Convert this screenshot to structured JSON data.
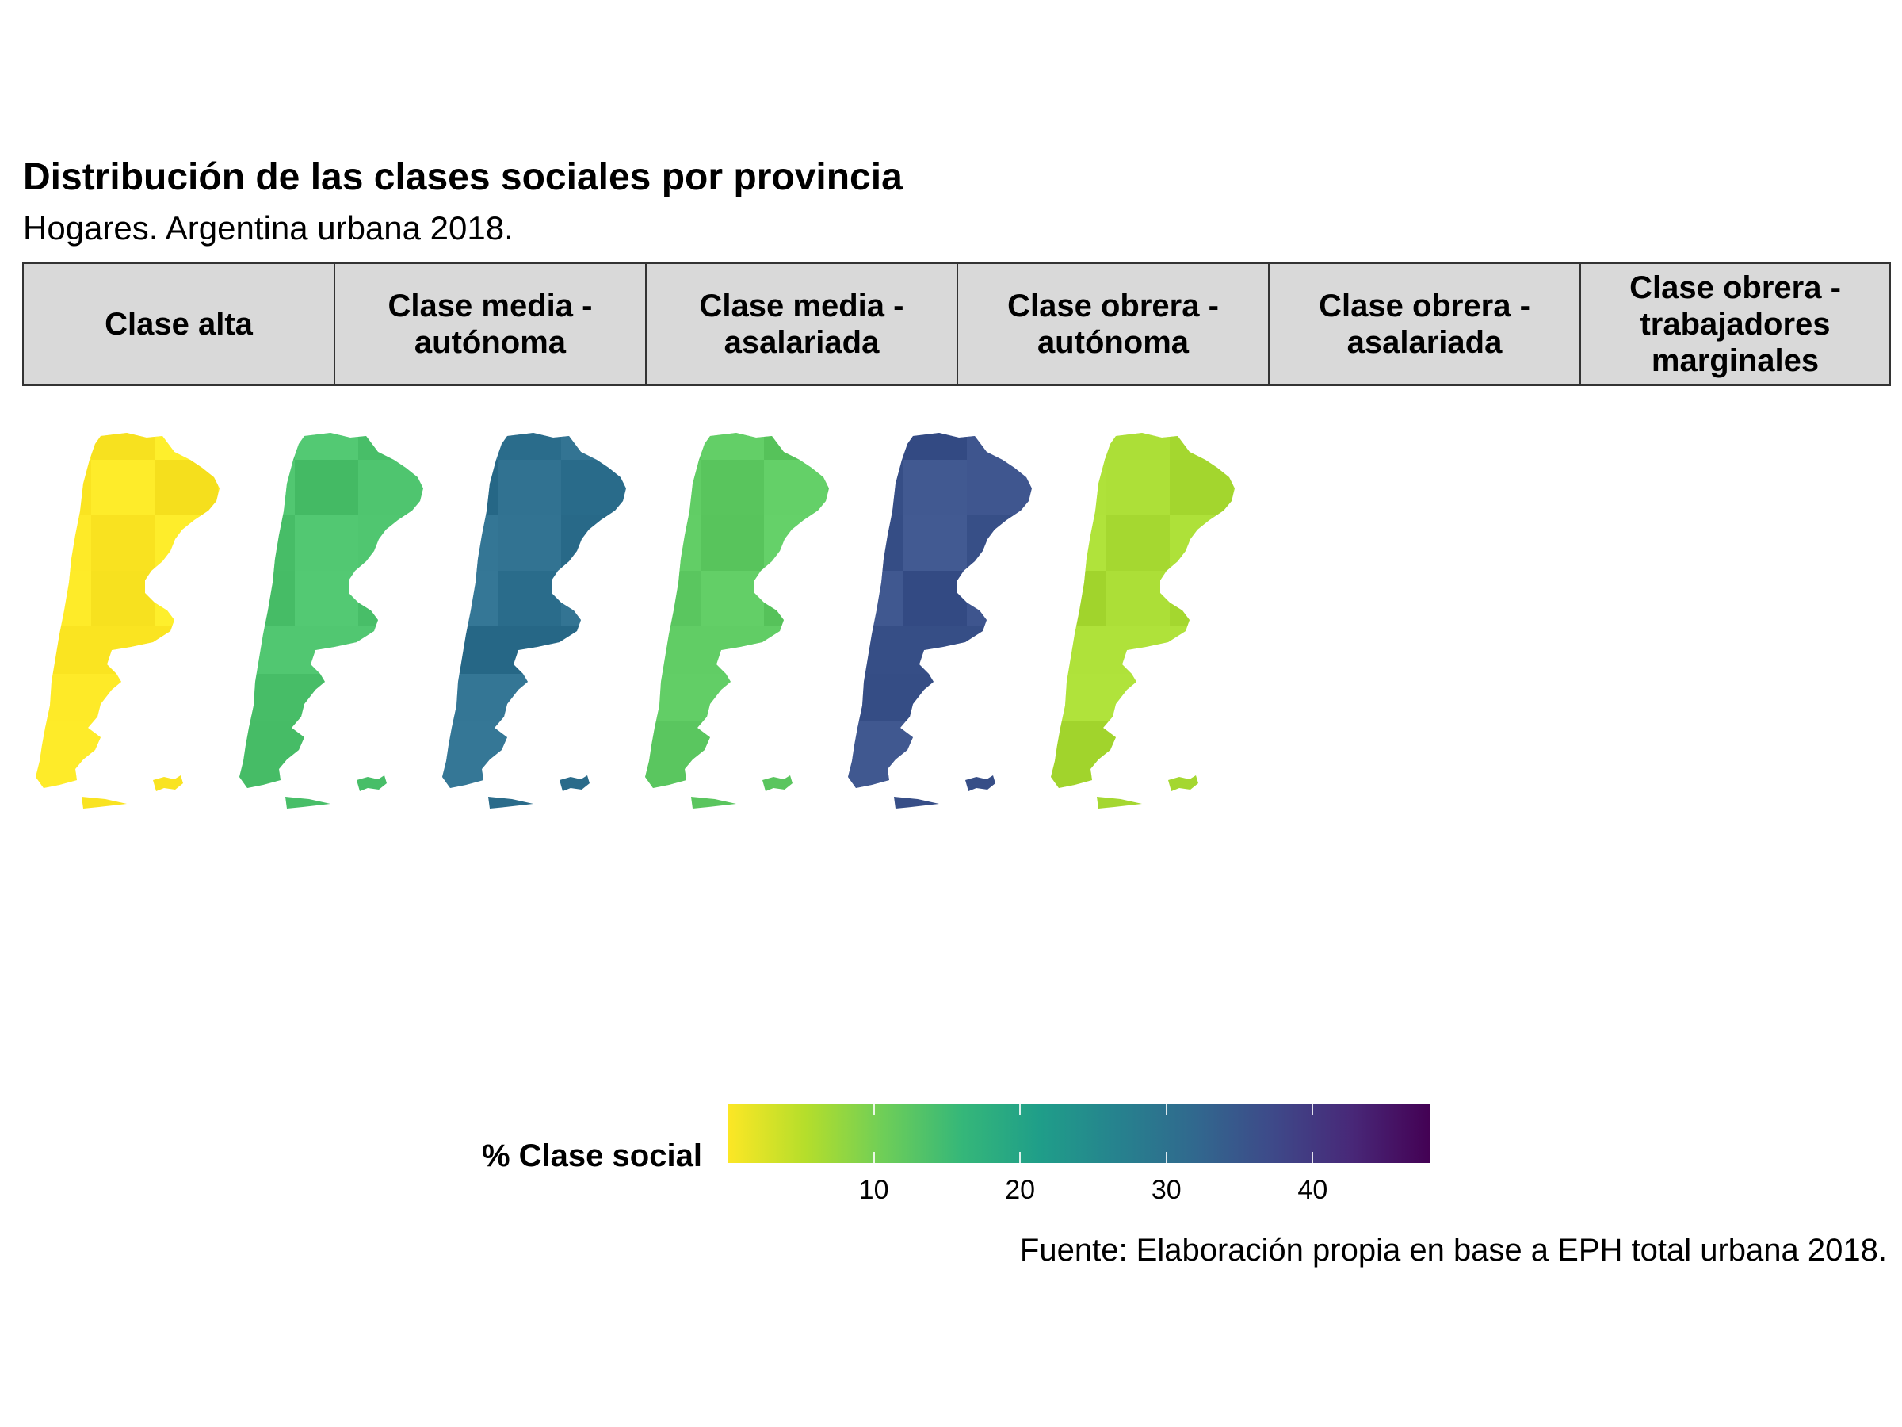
{
  "title": "Distribución de las clases sociales por provincia",
  "subtitle": "Hogares. Argentina urbana 2018.",
  "caption": "Fuente: Elaboración propia en base a EPH total urbana 2018.",
  "facets": [
    {
      "label_lines": [
        "Clase alta"
      ],
      "base_color": "#fde725"
    },
    {
      "label_lines": [
        "Clase media -",
        "autónoma"
      ],
      "base_color": "#4cc26c"
    },
    {
      "label_lines": [
        "Clase media -",
        "asalariada"
      ],
      "base_color": "#2e6f8e"
    },
    {
      "label_lines": [
        "Clase obrera -",
        "autónoma"
      ],
      "base_color": "#5ec962"
    },
    {
      "label_lines": [
        "Clase obrera -",
        "asalariada"
      ],
      "base_color": "#3b528b"
    },
    {
      "label_lines": [
        "Clase obrera -",
        "trabajadores",
        "marginales"
      ],
      "base_color": "#a8db34"
    }
  ],
  "legend": {
    "title": "% Clase social",
    "palette": "viridis (reversed)",
    "range": [
      0,
      48
    ],
    "breaks": [
      10,
      20,
      30,
      40
    ],
    "tick_labels": [
      "10",
      "20",
      "30",
      "40"
    ],
    "position": "bottom"
  },
  "chart_data": {
    "type": "choropleth map (faceted)",
    "region": "Argentina provinces",
    "facet_variable": "Clase social",
    "fill_variable": "% Clase social",
    "approx_values_by_facet": {
      "Clase alta": "≈0–4",
      "Clase media - autónoma": "≈12–21",
      "Clase media - asalariada": "≈27–42",
      "Clase obrera - autónoma": "≈10–21",
      "Clase obrera - asalariada": "≈28–45",
      "Clase obrera - trabajadores marginales": "≈3–14"
    }
  }
}
